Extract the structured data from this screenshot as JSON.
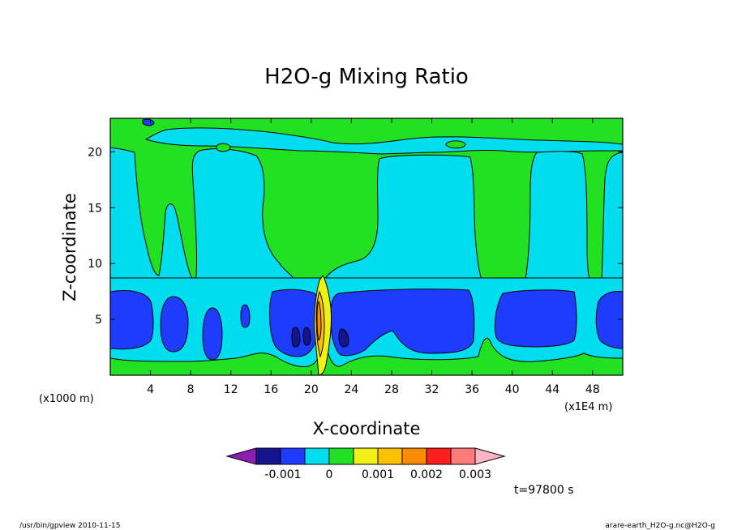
{
  "chart_data": {
    "type": "heatmap",
    "title": "H2O-g Mixing Ratio",
    "xlabel": "X-coordinate",
    "ylabel": "Z-coordinate",
    "x_unit_label": "(x1E4 m)",
    "y_unit_label": "(x1000 m)",
    "x_ticks": [
      4,
      8,
      12,
      16,
      20,
      24,
      28,
      32,
      36,
      40,
      44,
      48
    ],
    "y_ticks": [
      5,
      10,
      15,
      20
    ],
    "xlim": [
      0,
      51
    ],
    "ylim": [
      0,
      23
    ],
    "contour_levels": [
      -0.0015,
      -0.001,
      -0.0005,
      0,
      0.0005,
      0.001,
      0.0015,
      0.002,
      0.0025,
      0.003
    ],
    "colorbar": {
      "tick_labels": [
        "-0.001",
        "0",
        "0.001",
        "0.002",
        "0.003"
      ],
      "colors": [
        "#8c1eb4",
        "#14148c",
        "#1e3cff",
        "#00ddee",
        "#22e022",
        "#f0f014",
        "#ffc000",
        "#ff8c00",
        "#ff1e1e",
        "#ff7a7a",
        "#ffb4c8"
      ]
    },
    "regions": [
      {
        "name": "background",
        "level": "green"
      },
      {
        "name": "upper-cyan-band",
        "level": "cyan"
      },
      {
        "name": "left-cyan-column",
        "level": "cyan"
      },
      {
        "name": "central-cyan-column",
        "level": "cyan"
      },
      {
        "name": "right-cyan-column",
        "level": "cyan"
      },
      {
        "name": "lower-cyan-band",
        "level": "cyan"
      },
      {
        "name": "blue-cell-x0-5",
        "level": "blue"
      },
      {
        "name": "blue-cell-x5-7",
        "level": "blue"
      },
      {
        "name": "blue-cell-x9-11",
        "level": "blue"
      },
      {
        "name": "blue-cell-x16-21",
        "level": "blue"
      },
      {
        "name": "blue-cell-x22-36",
        "level": "blue"
      },
      {
        "name": "blue-cell-x39-46",
        "level": "blue"
      },
      {
        "name": "blue-cell-x48-51",
        "level": "blue"
      },
      {
        "name": "updraft-plume-x21",
        "level": "yellow"
      }
    ],
    "time_label": "t=97800 s"
  },
  "footer": {
    "left": "/usr/bin/gpview  2010-11-15",
    "right": "arare-earth_H2O-g.nc@H2O-g"
  }
}
